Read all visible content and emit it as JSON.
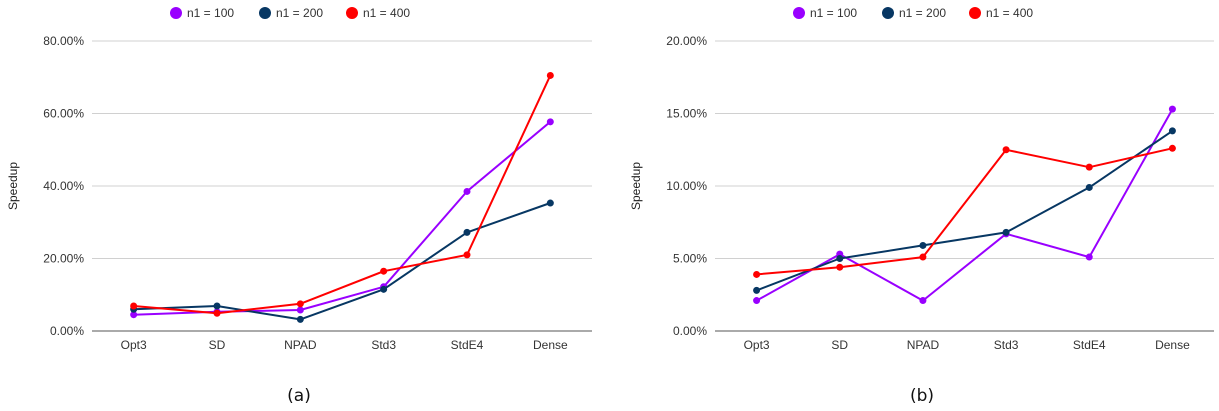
{
  "chart_data": [
    {
      "type": "line",
      "caption": "(a)",
      "ylabel": "Speedup",
      "xlabel": "",
      "categories": [
        "Opt3",
        "SD",
        "NPAD",
        "Std3",
        "StdE4",
        "Dense"
      ],
      "ylim": [
        0,
        0.8
      ],
      "yticks": [
        0,
        0.2,
        0.4,
        0.6,
        0.8
      ],
      "ytick_labels": [
        "0.00%",
        "20.00%",
        "40.00%",
        "60.00%",
        "80.00%"
      ],
      "grid": true,
      "legend_position": "top",
      "series": [
        {
          "name": "n1 = 100",
          "color": "#9900ff",
          "values": [
            0.045,
            0.053,
            0.058,
            0.122,
            0.385,
            0.577
          ]
        },
        {
          "name": "n1 = 200",
          "color": "#073763",
          "values": [
            0.06,
            0.069,
            0.032,
            0.115,
            0.272,
            0.353
          ]
        },
        {
          "name": "n1 = 400",
          "color": "#ff0000",
          "values": [
            0.069,
            0.049,
            0.075,
            0.165,
            0.21,
            0.705
          ]
        }
      ]
    },
    {
      "type": "line",
      "caption": "(b)",
      "ylabel": "Speedup",
      "xlabel": "",
      "categories": [
        "Opt3",
        "SD",
        "NPAD",
        "Std3",
        "StdE4",
        "Dense"
      ],
      "ylim": [
        0,
        0.2
      ],
      "yticks": [
        0,
        0.05,
        0.1,
        0.15,
        0.2
      ],
      "ytick_labels": [
        "0.00%",
        "5.00%",
        "10.00%",
        "15.00%",
        "20.00%"
      ],
      "grid": true,
      "legend_position": "top",
      "series": [
        {
          "name": "n1 = 100",
          "color": "#9900ff",
          "values": [
            0.021,
            0.053,
            0.021,
            0.067,
            0.051,
            0.153
          ]
        },
        {
          "name": "n1 = 200",
          "color": "#073763",
          "values": [
            0.028,
            0.05,
            0.059,
            0.068,
            0.099,
            0.138
          ]
        },
        {
          "name": "n1 = 400",
          "color": "#ff0000",
          "values": [
            0.039,
            0.044,
            0.051,
            0.125,
            0.113,
            0.126
          ]
        }
      ]
    }
  ]
}
